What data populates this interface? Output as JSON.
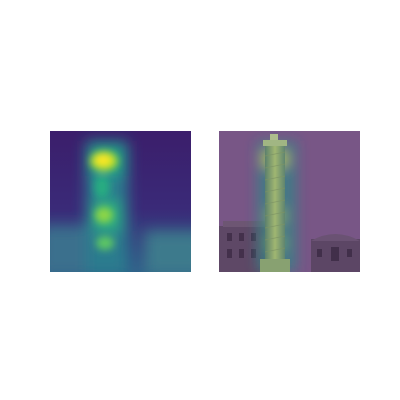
{
  "figure": {
    "panels": [
      {
        "role": "attention-heatmap",
        "colormap": "viridis"
      },
      {
        "role": "heatmap-overlay-on-photo",
        "subject": "column-monument"
      }
    ],
    "colors": {
      "viridis_low": "#440154",
      "viridis_mid": "#21918c",
      "viridis_high": "#fde725",
      "overlay_tint": "#6a3d7a"
    }
  }
}
